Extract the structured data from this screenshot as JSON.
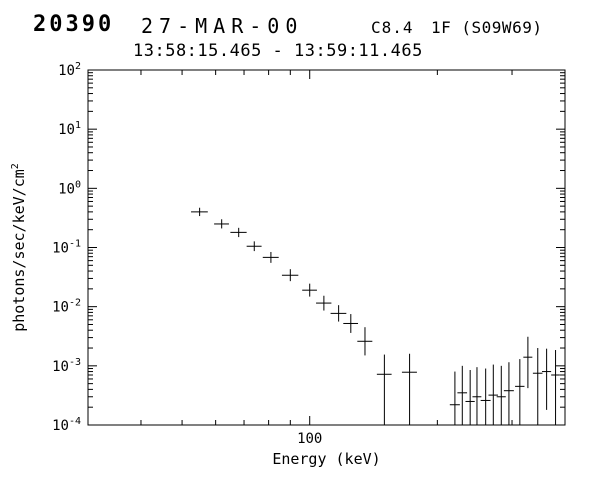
{
  "header": {
    "flare_number": "20390",
    "date": "27-MAR-00",
    "goes_class": "C8.4",
    "optical_class_location": "1F (S09W69)",
    "time_interval": "13:58:15.465 - 13:59:11.465"
  },
  "chart_data": {
    "type": "scatter",
    "title": "",
    "xlabel": "Energy (keV)",
    "ylabel": "photons/sec/keV/cm^2",
    "xscale": "log",
    "yscale": "log",
    "xlim": [
      30,
      400
    ],
    "ylim": [
      0.0001,
      100
    ],
    "grid": false,
    "legend": false,
    "marker": "plus-with-error-bars",
    "x_major_ticks": [
      100
    ],
    "x_major_tick_labels": [
      "100"
    ],
    "x_minor_ticks": [
      40,
      50,
      60,
      70,
      80,
      90,
      200,
      300
    ],
    "y_major_tick_exponents": [
      2,
      1,
      0,
      -1,
      -2,
      -3,
      -4
    ],
    "points": [
      {
        "e": 55,
        "de": 2.5,
        "f": 0.4,
        "flo": 0.34,
        "fhi": 0.47
      },
      {
        "e": 62,
        "de": 2.5,
        "f": 0.25,
        "flo": 0.21,
        "fhi": 0.3
      },
      {
        "e": 68,
        "de": 3,
        "f": 0.18,
        "flo": 0.15,
        "fhi": 0.215
      },
      {
        "e": 74,
        "de": 3,
        "f": 0.105,
        "flo": 0.087,
        "fhi": 0.127
      },
      {
        "e": 81,
        "de": 3.5,
        "f": 0.068,
        "flo": 0.055,
        "fhi": 0.084
      },
      {
        "e": 90,
        "de": 4,
        "f": 0.034,
        "flo": 0.027,
        "fhi": 0.043
      },
      {
        "e": 100,
        "de": 4,
        "f": 0.019,
        "flo": 0.0148,
        "fhi": 0.0245
      },
      {
        "e": 108,
        "de": 4.5,
        "f": 0.0115,
        "flo": 0.0086,
        "fhi": 0.0153
      },
      {
        "e": 117,
        "de": 5,
        "f": 0.0077,
        "flo": 0.0056,
        "fhi": 0.0106
      },
      {
        "e": 125,
        "de": 5,
        "f": 0.0052,
        "flo": 0.0036,
        "fhi": 0.0075
      },
      {
        "e": 135,
        "de": 5.5,
        "f": 0.0026,
        "flo": 0.0015,
        "fhi": 0.0045
      },
      {
        "e": 150,
        "de": 6,
        "f": 0.00072,
        "flo": 0.0001,
        "fhi": 0.00155
      },
      {
        "e": 172,
        "de": 7,
        "f": 0.00078,
        "flo": 0.0001,
        "fhi": 0.0016
      },
      {
        "e": 220,
        "de": 6,
        "f": 0.00022,
        "flo": 0.0001,
        "fhi": 0.0008
      },
      {
        "e": 229,
        "de": 6,
        "f": 0.00035,
        "flo": 0.0001,
        "fhi": 0.001
      },
      {
        "e": 239,
        "de": 6,
        "f": 0.00025,
        "flo": 0.0001,
        "fhi": 0.00085
      },
      {
        "e": 248,
        "de": 6,
        "f": 0.0003,
        "flo": 0.0001,
        "fhi": 0.00095
      },
      {
        "e": 260,
        "de": 7,
        "f": 0.00026,
        "flo": 0.0001,
        "fhi": 0.0009
      },
      {
        "e": 271,
        "de": 7,
        "f": 0.00032,
        "flo": 0.0001,
        "fhi": 0.00105
      },
      {
        "e": 283,
        "de": 7,
        "f": 0.0003,
        "flo": 0.0001,
        "fhi": 0.001
      },
      {
        "e": 295,
        "de": 8,
        "f": 0.00038,
        "flo": 0.0001,
        "fhi": 0.00115
      },
      {
        "e": 313,
        "de": 8,
        "f": 0.00045,
        "flo": 0.0001,
        "fhi": 0.0013
      },
      {
        "e": 327,
        "de": 8,
        "f": 0.0014,
        "flo": 0.00042,
        "fhi": 0.0031
      },
      {
        "e": 345,
        "de": 9,
        "f": 0.00075,
        "flo": 0.0001,
        "fhi": 0.002
      },
      {
        "e": 362,
        "de": 9,
        "f": 0.0008,
        "flo": 0.00018,
        "fhi": 0.00195
      },
      {
        "e": 380,
        "de": 9,
        "f": 0.0007,
        "flo": 0.0001,
        "fhi": 0.00185
      }
    ]
  }
}
